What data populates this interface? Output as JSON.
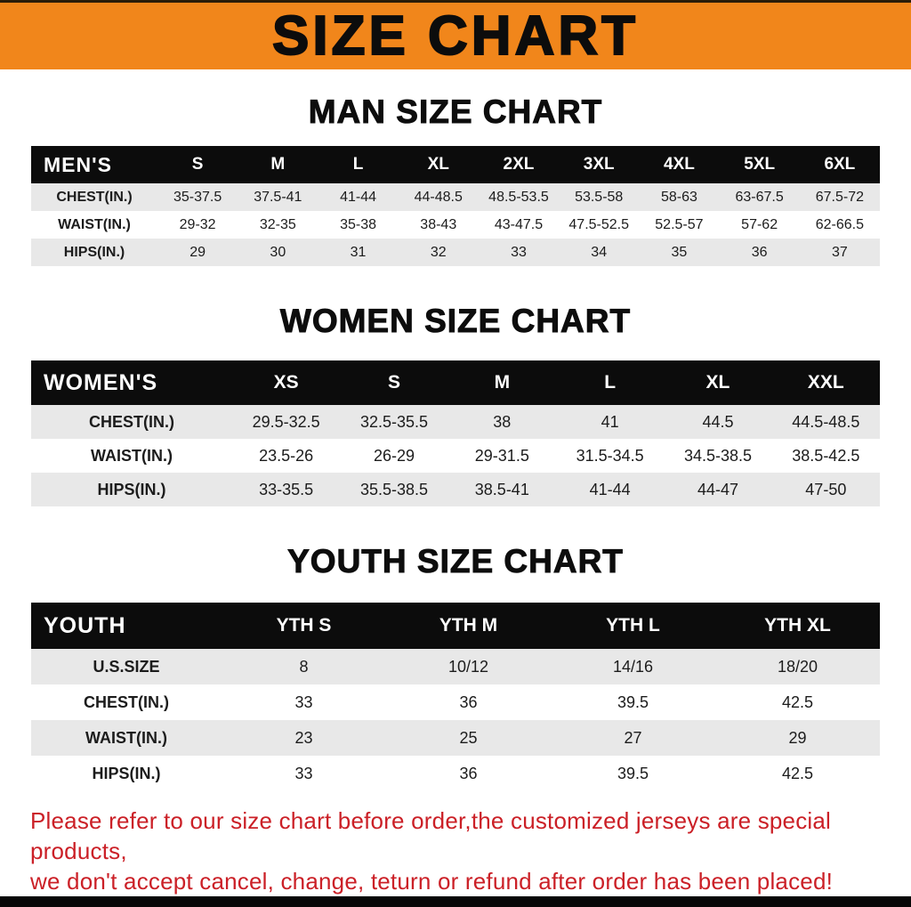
{
  "banner": {
    "title": "SIZE CHART",
    "bg_color": "#F1861B"
  },
  "sections": [
    {
      "id": "men",
      "heading": "MAN SIZE CHART",
      "table": {
        "header": [
          "MEN'S",
          "S",
          "M",
          "L",
          "XL",
          "2XL",
          "3XL",
          "4XL",
          "5XL",
          "6XL"
        ],
        "rows": [
          [
            "CHEST(IN.)",
            "35-37.5",
            "37.5-41",
            "41-44",
            "44-48.5",
            "48.5-53.5",
            "53.5-58",
            "58-63",
            "63-67.5",
            "67.5-72"
          ],
          [
            "WAIST(IN.)",
            "29-32",
            "32-35",
            "35-38",
            "38-43",
            "43-47.5",
            "47.5-52.5",
            "52.5-57",
            "57-62",
            "62-66.5"
          ],
          [
            "HIPS(IN.)",
            "29",
            "30",
            "31",
            "32",
            "33",
            "34",
            "35",
            "36",
            "37"
          ]
        ]
      }
    },
    {
      "id": "women",
      "heading": "WOMEN SIZE CHART",
      "table": {
        "header": [
          "WOMEN'S",
          "XS",
          "S",
          "M",
          "L",
          "XL",
          "XXL"
        ],
        "rows": [
          [
            "CHEST(IN.)",
            "29.5-32.5",
            "32.5-35.5",
            "38",
            "41",
            "44.5",
            "44.5-48.5"
          ],
          [
            "WAIST(IN.)",
            "23.5-26",
            "26-29",
            "29-31.5",
            "31.5-34.5",
            "34.5-38.5",
            "38.5-42.5"
          ],
          [
            "HIPS(IN.)",
            "33-35.5",
            "35.5-38.5",
            "38.5-41",
            "41-44",
            "44-47",
            "47-50"
          ]
        ]
      }
    },
    {
      "id": "youth",
      "heading": "YOUTH SIZE CHART",
      "table": {
        "header": [
          "YOUTH",
          "YTH S",
          "YTH M",
          "YTH L",
          "YTH XL"
        ],
        "rows": [
          [
            "U.S.SIZE",
            "8",
            "10/12",
            "14/16",
            "18/20"
          ],
          [
            "CHEST(IN.)",
            "33",
            "36",
            "39.5",
            "42.5"
          ],
          [
            "WAIST(IN.)",
            "23",
            "25",
            "27",
            "29"
          ],
          [
            "HIPS(IN.)",
            "33",
            "36",
            "39.5",
            "42.5"
          ]
        ]
      }
    }
  ],
  "disclaimer": {
    "line1": "Please refer to our size chart before order,the customized jerseys are special products,",
    "line2": "we don't accept cancel, change, teturn or refund after order has been placed!",
    "color": "#CB2027"
  }
}
